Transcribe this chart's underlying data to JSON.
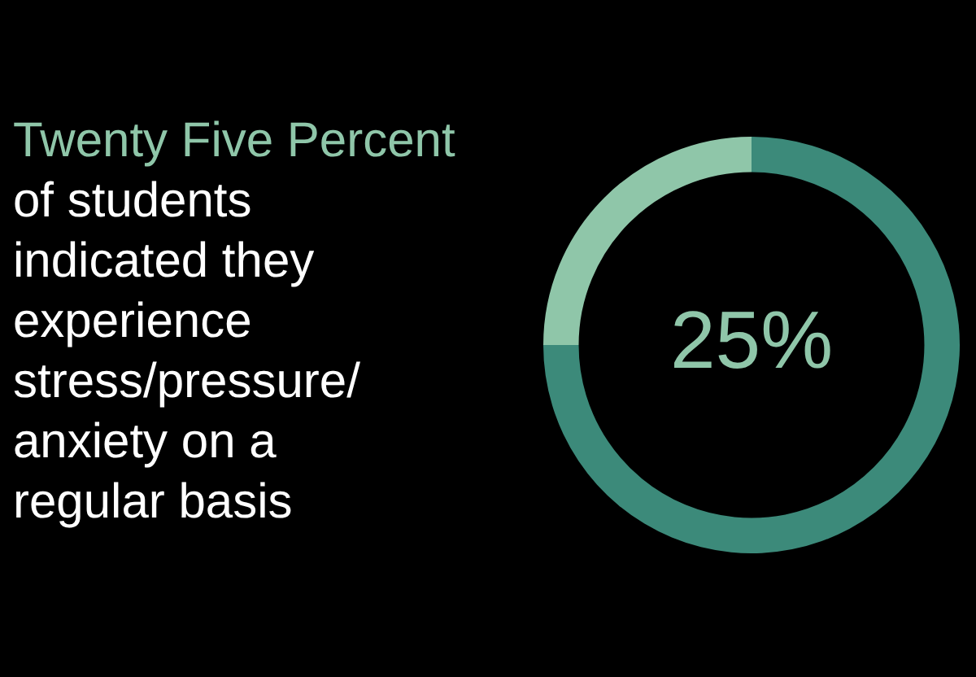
{
  "chart_data": {
    "type": "donut",
    "title": "Twenty Five Percent",
    "subtitle": "of students\nindicated they\nexperience\nstress/pressure/\nanxiety on a\nregular basis",
    "categories": [
      null,
      null
    ],
    "values": [
      75,
      25
    ],
    "colors": [
      "#3c8a7a",
      "#8fc6a9"
    ],
    "annotations": [
      "25%"
    ]
  }
}
